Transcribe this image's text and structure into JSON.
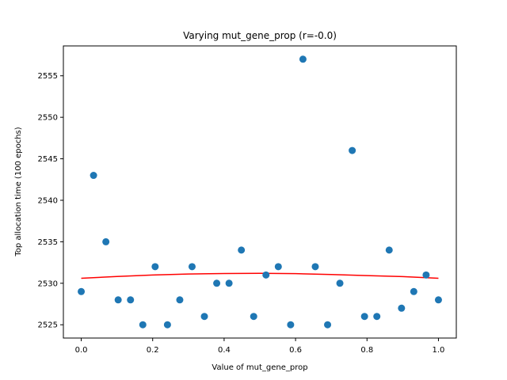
{
  "chart_data": {
    "type": "scatter",
    "title": "Varying mut_gene_prop (r=-0.0)",
    "xlabel": "Value of mut_gene_prop",
    "ylabel": "Top allocation time (100 epochs)",
    "xlim": [
      -0.05,
      1.05
    ],
    "ylim": [
      2523.4,
      2558.6
    ],
    "xticks": [
      0.0,
      0.2,
      0.4,
      0.6,
      0.8,
      1.0
    ],
    "xtick_labels": [
      "0.0",
      "0.2",
      "0.4",
      "0.6",
      "0.8",
      "1.0"
    ],
    "yticks": [
      2525,
      2530,
      2535,
      2540,
      2545,
      2550,
      2555
    ],
    "ytick_labels": [
      "2525",
      "2530",
      "2535",
      "2540",
      "2545",
      "2550",
      "2555"
    ],
    "grid": false,
    "legend": "none",
    "colors": {
      "points": "#1f77b4",
      "fit": "#ff0000"
    },
    "points": {
      "x": [
        0.0,
        0.0345,
        0.069,
        0.1034,
        0.1379,
        0.1724,
        0.2069,
        0.2414,
        0.2759,
        0.3103,
        0.3448,
        0.3793,
        0.4138,
        0.4483,
        0.4828,
        0.5172,
        0.5517,
        0.5862,
        0.6207,
        0.6552,
        0.6897,
        0.7241,
        0.7586,
        0.7931,
        0.8276,
        0.8621,
        0.8966,
        0.931,
        0.9655,
        1.0
      ],
      "y": [
        2529,
        2543,
        2535,
        2528,
        2528,
        2525,
        2532,
        2525,
        2528,
        2532,
        2526,
        2530,
        2530,
        2534,
        2526,
        2531,
        2532,
        2525,
        2557,
        2532,
        2525,
        2530,
        2546,
        2526,
        2526,
        2534,
        2527,
        2529,
        2531,
        2528
      ]
    },
    "fit": {
      "x": [
        0.0,
        0.1,
        0.2,
        0.3,
        0.4,
        0.5,
        0.6,
        0.7,
        0.8,
        0.9,
        1.0
      ],
      "y": [
        2530.6,
        2530.82,
        2531.0,
        2531.12,
        2531.18,
        2531.2,
        2531.16,
        2531.06,
        2530.92,
        2530.8,
        2530.6
      ]
    }
  }
}
